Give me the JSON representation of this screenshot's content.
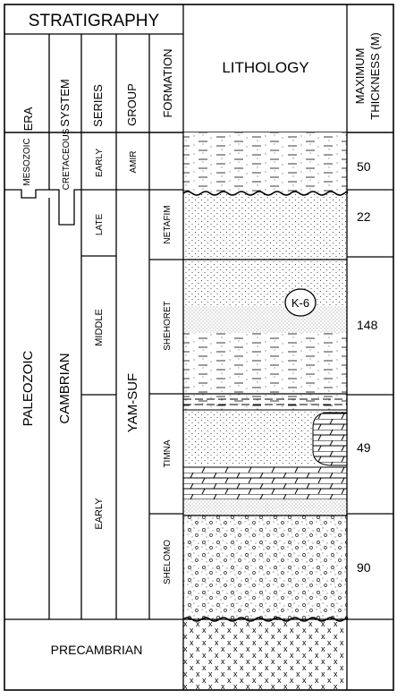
{
  "header": {
    "title": "STRATIGRAPHY",
    "era": "ERA",
    "system": "SYSTEM",
    "series": "SERIES",
    "group": "GROUP",
    "formation": "FORMATION",
    "lithology": "LITHOLOGY",
    "thickness_line1": "MAXIMUM",
    "thickness_line2": "THICKNESS (M)"
  },
  "units": {
    "era_mesozoic": "MESOZOIC",
    "era_paleozoic": "PALEOZOIC",
    "system_cretaceous": "CRETACEOUS",
    "system_cambrian": "CAMBRIAN",
    "series_early_top": "EARLY",
    "series_late": "LATE",
    "series_middle": "MIDDLE",
    "series_early": "EARLY",
    "group_amir": "AMIR",
    "group_yamsuf": "YAM-SUF",
    "formation_netafim": "NETAFIM",
    "formation_shehoret": "SHEHORET",
    "formation_timna": "TIMNA",
    "formation_shelomo": "SHELOMO",
    "precambrian": "PRECAMBRIAN",
    "sample_label": "K-6"
  },
  "thickness": {
    "amir": "50",
    "netafim": "22",
    "shehoret": "148",
    "timna": "49",
    "shelomo": "90"
  },
  "lithology_patterns": [
    "sandstone-with-shale-dashes",
    "sandstone-dots",
    "sandstone-dots-and-shale",
    "dolomite-brick",
    "conglomerate-pebbles",
    "basement-crosses"
  ]
}
